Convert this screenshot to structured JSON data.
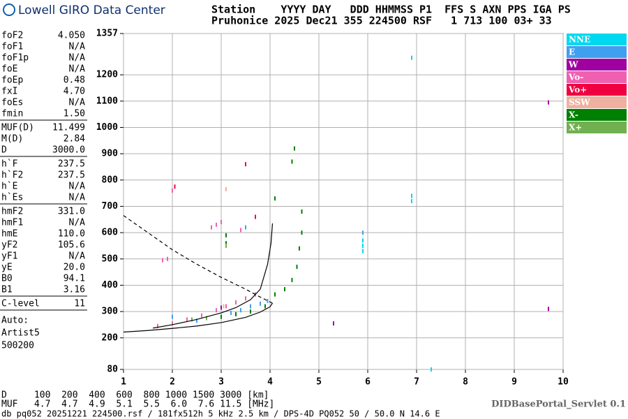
{
  "header": {
    "logo_text": "Lowell GIRO Data Center",
    "info_line_1": "Station    YYYY DAY   DDD HHMMSS P1  FFS S AXN PPS IGA PS",
    "info_line_2": "Pruhonice 2025 Dec21 355 224500 RSF   1 713 100 03+ 33"
  },
  "parameters": [
    [
      [
        "foF2",
        "4.050"
      ],
      [
        "foF1",
        "N/A"
      ],
      [
        "foF1p",
        "N/A"
      ],
      [
        "foE",
        "N/A"
      ],
      [
        "foEp",
        "0.48"
      ],
      [
        "fxI",
        "4.70"
      ],
      [
        "foEs",
        "N/A"
      ],
      [
        "fmin",
        "1.50"
      ]
    ],
    [
      [
        "MUF(D)",
        "11.499"
      ],
      [
        "M(D)",
        "2.84"
      ],
      [
        "D",
        "3000.0"
      ]
    ],
    [
      [
        "h`F",
        "237.5"
      ],
      [
        "h`F2",
        "237.5"
      ],
      [
        "h`E",
        "N/A"
      ],
      [
        "h`Es",
        "N/A"
      ]
    ],
    [
      [
        "hmF2",
        "331.0"
      ],
      [
        "hmF1",
        "N/A"
      ],
      [
        "hmE",
        "110.0"
      ],
      [
        "yF2",
        "105.6"
      ],
      [
        "yF1",
        "N/A"
      ],
      [
        "yE",
        "20.0"
      ],
      [
        "B0",
        "94.1"
      ],
      [
        "B1",
        "3.16"
      ]
    ],
    [
      [
        "C-level",
        "11"
      ]
    ]
  ],
  "autoscaling": [
    "Auto:",
    "Artist5",
    "500200"
  ],
  "chart_data": {
    "type": "scatter",
    "xlim": [
      1,
      10
    ],
    "xticks": [
      1,
      2,
      3,
      4,
      5,
      6,
      7,
      8,
      9,
      10
    ],
    "ylim": [
      80,
      1357
    ],
    "yticks": [
      80,
      200,
      300,
      400,
      500,
      600,
      700,
      800,
      900,
      1000,
      1100,
      1200,
      1357
    ],
    "grid": true,
    "series": [
      {
        "name": "NNE",
        "color": "#00d8f0",
        "x": [
          5.9,
          5.9,
          5.9,
          6.9,
          6.9,
          6.9,
          7.3
        ],
        "values": [
          530,
          550,
          570,
          720,
          740,
          1265,
          80
        ]
      },
      {
        "name": "E",
        "color": "#40a0f0",
        "x": [
          2.0,
          2.5,
          3.2,
          3.4,
          3.6,
          3.8,
          3.95,
          5.9,
          3.5
        ],
        "values": [
          280,
          265,
          295,
          305,
          320,
          330,
          340,
          600,
          620
        ]
      },
      {
        "name": "W",
        "color": "#a000a0",
        "x": [
          3.0,
          3.3,
          5.3,
          9.7,
          9.7
        ],
        "values": [
          315,
          335,
          255,
          310,
          1095
        ]
      },
      {
        "name": "Vo-",
        "color": "#f060b0",
        "x": [
          1.7,
          2.0,
          2.3,
          2.6,
          2.9,
          3.1,
          3.3,
          3.5,
          3.7,
          1.8,
          1.9,
          2.0,
          2.8,
          2.9,
          3.0,
          3.4
        ],
        "values": [
          245,
          255,
          270,
          285,
          305,
          320,
          335,
          350,
          365,
          495,
          500,
          760,
          620,
          630,
          640,
          610
        ]
      },
      {
        "name": "Vo+",
        "color": "#f00040",
        "x": [
          2.05,
          3.7,
          3.5
        ],
        "values": [
          775,
          660,
          860
        ]
      },
      {
        "name": "SSW",
        "color": "#f0b0a0",
        "x": [
          3.05,
          3.1
        ],
        "values": [
          320,
          765
        ]
      },
      {
        "name": "X-",
        "color": "#008000",
        "x": [
          3.0,
          3.3,
          3.6,
          3.9,
          4.1,
          4.3,
          4.45,
          4.55,
          4.6,
          4.65,
          4.65,
          4.45,
          4.5,
          3.1,
          3.1,
          4.1
        ],
        "values": [
          280,
          290,
          300,
          320,
          365,
          385,
          420,
          470,
          540,
          600,
          680,
          870,
          920,
          560,
          590,
          730
        ]
      },
      {
        "name": "X+",
        "color": "#70b050",
        "x": [
          2.4,
          2.7,
          3.1
        ],
        "values": [
          270,
          275,
          550
        ]
      }
    ],
    "traces": [
      {
        "style": "solid",
        "x": [
          1,
          1.5,
          2,
          2.5,
          3,
          3.5,
          3.8,
          4.0,
          4.05
        ],
        "values": [
          222,
          228,
          236,
          245,
          258,
          278,
          298,
          318,
          332
        ]
      },
      {
        "style": "solid",
        "x": [
          1.6,
          2,
          2.5,
          3,
          3.3,
          3.6,
          3.8,
          3.95,
          4.02,
          4.05
        ],
        "values": [
          237,
          250,
          270,
          295,
          315,
          345,
          385,
          480,
          560,
          635
        ]
      },
      {
        "style": "dashed",
        "x": [
          1,
          1.5,
          2,
          2.5,
          3,
          3.5,
          3.8,
          4.05
        ],
        "values": [
          665,
          600,
          535,
          480,
          430,
          385,
          355,
          332
        ]
      }
    ]
  },
  "footer": {
    "distance_line": "D     100  200  400  600  800 1000 1500 3000 [km]",
    "muf_line": "MUF   4.7  4.7  4.9  5.1  5.5  6.0  7.6 11.5 [MHz]",
    "servlet": "DIDBasePortal_Servlet 0.1",
    "file_info": "db pq052 20251221 224500.rsf / 181fx512h 5 kHz 2.5 km / DPS-4D PQ052 50 / 50.0 N 14.6 E"
  }
}
